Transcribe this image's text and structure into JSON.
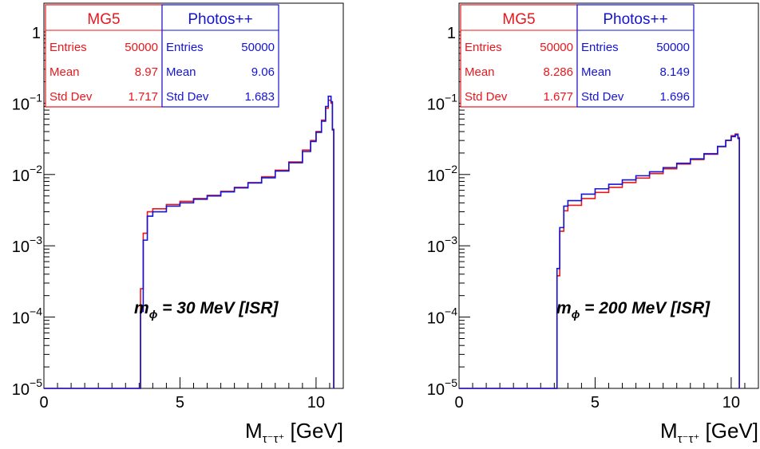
{
  "colors": {
    "mg5": "#e8181d",
    "photos": "#1414d2",
    "axis": "#000000",
    "background": "#ffffff"
  },
  "chart_data": [
    {
      "type": "line",
      "scale": "log-y",
      "xlabel_main": "M",
      "xlabel_sub": "τ⁻τ⁺",
      "xlabel_unit": "[GeV]",
      "xlim": [
        0,
        11
      ],
      "ylim": [
        1e-05,
        1
      ],
      "x_ticks": [
        "0",
        "5",
        "10"
      ],
      "y_ticks": [
        {
          "base": "1",
          "exp": ""
        },
        {
          "base": "10",
          "exp": "−1"
        },
        {
          "base": "10",
          "exp": "−2"
        },
        {
          "base": "10",
          "exp": "−3"
        },
        {
          "base": "10",
          "exp": "−4"
        },
        {
          "base": "10",
          "exp": "−5"
        }
      ],
      "annotation": {
        "symbol": "m",
        "sub": "ϕ",
        "text": " = 30 MeV [ISR]"
      },
      "stats": [
        {
          "name": "MG5",
          "entries_label": "Entries",
          "entries": "50000",
          "mean_label": "Mean",
          "mean": "8.97",
          "std_label": "Std Dev",
          "std": "1.717"
        },
        {
          "name": "Photos++",
          "entries_label": "Entries",
          "entries": "50000",
          "mean_label": "Mean",
          "mean": "9.06",
          "std_label": "Std Dev",
          "std": "1.683"
        }
      ],
      "series": [
        {
          "name": "MG5",
          "x": [
            0,
            3.45,
            3.55,
            3.65,
            3.8,
            4.0,
            4.5,
            5.0,
            5.5,
            6.0,
            6.5,
            7.0,
            7.5,
            8.0,
            8.5,
            9.0,
            9.5,
            9.8,
            10.0,
            10.2,
            10.35,
            10.45,
            10.55,
            10.6,
            10.65
          ],
          "y": [
            1e-05,
            1e-05,
            0.00025,
            0.0015,
            0.003,
            0.0033,
            0.0038,
            0.0042,
            0.0046,
            0.0051,
            0.0058,
            0.0066,
            0.0077,
            0.0093,
            0.0115,
            0.015,
            0.022,
            0.03,
            0.04,
            0.058,
            0.085,
            0.11,
            0.1,
            0.042,
            1e-05
          ]
        },
        {
          "name": "Photos++",
          "x": [
            0,
            3.45,
            3.55,
            3.65,
            3.8,
            4.0,
            4.5,
            5.0,
            5.5,
            6.0,
            6.5,
            7.0,
            7.5,
            8.0,
            8.5,
            9.0,
            9.5,
            9.8,
            10.0,
            10.2,
            10.35,
            10.45,
            10.55,
            10.6,
            10.65
          ],
          "y": [
            1e-05,
            1e-05,
            0.00012,
            0.0012,
            0.0026,
            0.003,
            0.0036,
            0.004,
            0.0045,
            0.005,
            0.0057,
            0.0065,
            0.0076,
            0.009,
            0.0112,
            0.0146,
            0.021,
            0.029,
            0.039,
            0.056,
            0.09,
            0.125,
            0.105,
            0.043,
            1e-05
          ]
        }
      ]
    },
    {
      "type": "line",
      "scale": "log-y",
      "xlabel_main": "M",
      "xlabel_sub": "τ⁻τ⁺",
      "xlabel_unit": "[GeV]",
      "xlim": [
        0,
        11
      ],
      "ylim": [
        1e-05,
        1
      ],
      "x_ticks": [
        "0",
        "5",
        "10"
      ],
      "y_ticks": [
        {
          "base": "1",
          "exp": ""
        },
        {
          "base": "10",
          "exp": "−1"
        },
        {
          "base": "10",
          "exp": "−2"
        },
        {
          "base": "10",
          "exp": "−3"
        },
        {
          "base": "10",
          "exp": "−4"
        },
        {
          "base": "10",
          "exp": "−5"
        }
      ],
      "annotation": {
        "symbol": "m",
        "sub": "ϕ",
        "text": " = 200 MeV [ISR]"
      },
      "stats": [
        {
          "name": "MG5",
          "entries_label": "Entries",
          "entries": "50000",
          "mean_label": "Mean",
          "mean": "8.286",
          "std_label": "Std Dev",
          "std": "1.677"
        },
        {
          "name": "Photos++",
          "entries_label": "Entries",
          "entries": "50000",
          "mean_label": "Mean",
          "mean": "8.149",
          "std_label": "Std Dev",
          "std": "1.696"
        }
      ],
      "series": [
        {
          "name": "MG5",
          "x": [
            0,
            3.5,
            3.6,
            3.7,
            3.85,
            4.0,
            4.5,
            5.0,
            5.5,
            6.0,
            6.5,
            7.0,
            7.5,
            8.0,
            8.5,
            9.0,
            9.5,
            9.8,
            10.0,
            10.15,
            10.25,
            10.3
          ],
          "y": [
            1e-05,
            1e-05,
            0.00038,
            0.0016,
            0.0031,
            0.0037,
            0.0046,
            0.0056,
            0.0066,
            0.0077,
            0.0089,
            0.0103,
            0.012,
            0.014,
            0.0162,
            0.0192,
            0.0245,
            0.03,
            0.035,
            0.037,
            0.033,
            1e-05
          ]
        },
        {
          "name": "Photos++",
          "x": [
            0,
            3.5,
            3.6,
            3.7,
            3.85,
            4.0,
            4.5,
            5.0,
            5.5,
            6.0,
            6.5,
            7.0,
            7.5,
            8.0,
            8.5,
            9.0,
            9.5,
            9.8,
            10.0,
            10.15,
            10.25,
            10.3
          ],
          "y": [
            1e-05,
            1e-05,
            0.00048,
            0.0018,
            0.0036,
            0.0043,
            0.0053,
            0.0063,
            0.0073,
            0.0084,
            0.0096,
            0.0109,
            0.0125,
            0.0144,
            0.0166,
            0.0196,
            0.0248,
            0.0302,
            0.034,
            0.036,
            0.032,
            1e-05
          ]
        }
      ]
    }
  ]
}
